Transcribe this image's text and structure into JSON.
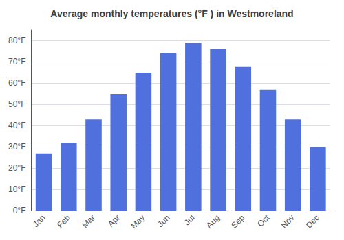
{
  "chart_data": {
    "type": "bar",
    "title": "Average monthly temperatures (°F ) in Westmoreland",
    "categories": [
      "Jan",
      "Feb",
      "Mar",
      "Apr",
      "May",
      "Jun",
      "Jul",
      "Aug",
      "Sep",
      "Oct",
      "Nov",
      "Dec"
    ],
    "values": [
      27,
      32,
      43,
      55,
      65,
      74,
      79,
      76,
      68,
      57,
      43,
      30
    ],
    "ylim": [
      0,
      85
    ],
    "yticks": [
      {
        "value": 0,
        "label": "0°F"
      },
      {
        "value": 10,
        "label": "10°F"
      },
      {
        "value": 20,
        "label": "20°F"
      },
      {
        "value": 30,
        "label": "30°F"
      },
      {
        "value": 40,
        "label": "40°F"
      },
      {
        "value": 50,
        "label": "50°F"
      },
      {
        "value": 60,
        "label": "60°F"
      },
      {
        "value": 70,
        "label": "70°F"
      },
      {
        "value": 80,
        "label": "80°F"
      }
    ],
    "grid": true
  }
}
